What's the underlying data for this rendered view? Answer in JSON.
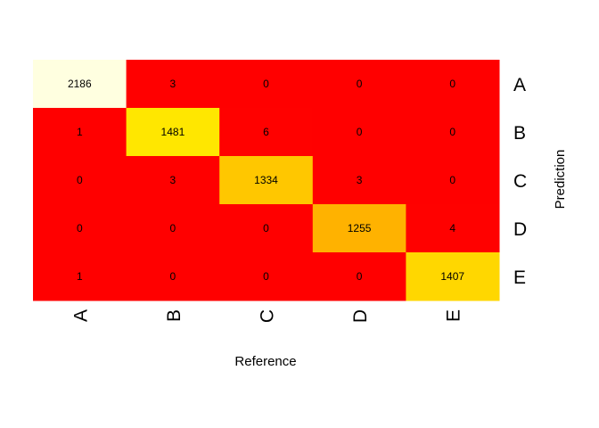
{
  "chart_data": {
    "type": "heatmap",
    "xlabel": "Reference",
    "ylabel": "Prediction",
    "x_categories": [
      "A",
      "B",
      "C",
      "D",
      "E"
    ],
    "y_categories": [
      "A",
      "B",
      "C",
      "D",
      "E"
    ],
    "values": [
      [
        2186,
        3,
        0,
        0,
        0
      ],
      [
        1,
        1481,
        6,
        0,
        0
      ],
      [
        0,
        3,
        1334,
        3,
        0
      ],
      [
        0,
        0,
        0,
        1255,
        4
      ],
      [
        1,
        0,
        0,
        0,
        1407
      ]
    ],
    "colors": {
      "low": "#FF0000",
      "high": "#FFFFE0"
    }
  }
}
